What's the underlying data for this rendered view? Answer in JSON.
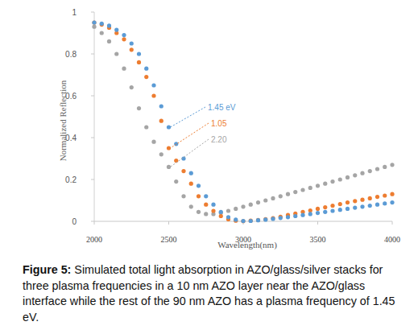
{
  "chart_data": {
    "type": "scatter",
    "x_label": "Wavelength(nm)",
    "y_label": "Normalized Reflection",
    "caption_label": "Figure 5:",
    "caption": "Simulated total light absorption in AZO/glass/silver stacks for three plasma frequencies in a 10 nm AZO layer near the AZO/glass interface while the rest of the 90 nm AZO has a plasma frequency of 1.45 eV.",
    "marker": "circle",
    "grid": false,
    "xlim": [
      2000,
      4000
    ],
    "xticks": [
      2000,
      2500,
      3000,
      3500,
      4000
    ],
    "ylim": [
      0,
      1
    ],
    "yticks": [
      0,
      0.2,
      0.4,
      0.6,
      0.8,
      1
    ],
    "x": [
      2000,
      2050,
      2100,
      2150,
      2200,
      2250,
      2300,
      2350,
      2400,
      2450,
      2500,
      2550,
      2600,
      2650,
      2700,
      2750,
      2800,
      2850,
      2900,
      2950,
      3000,
      3050,
      3100,
      3150,
      3200,
      3250,
      3300,
      3350,
      3400,
      3450,
      3500,
      3550,
      3600,
      3650,
      3700,
      3750,
      3800,
      3850,
      3900,
      3950,
      4000
    ],
    "series": [
      {
        "name": "1.45 eV",
        "color": "#5b9bd5",
        "values": [
          0.95,
          0.945,
          0.935,
          0.915,
          0.89,
          0.85,
          0.8,
          0.73,
          0.65,
          0.55,
          0.45,
          0.37,
          0.3,
          0.23,
          0.17,
          0.12,
          0.08,
          0.045,
          0.02,
          0.008,
          0.002,
          0.002,
          0.005,
          0.008,
          0.012,
          0.016,
          0.02,
          0.025,
          0.03,
          0.035,
          0.04,
          0.045,
          0.05,
          0.055,
          0.06,
          0.065,
          0.07,
          0.075,
          0.08,
          0.085,
          0.09
        ]
      },
      {
        "name": "1.05",
        "color": "#ed7d31",
        "values": [
          0.95,
          0.94,
          0.925,
          0.9,
          0.87,
          0.82,
          0.76,
          0.69,
          0.6,
          0.48,
          0.35,
          0.29,
          0.24,
          0.18,
          0.12,
          0.08,
          0.05,
          0.025,
          0.01,
          0.003,
          0.001,
          0.003,
          0.006,
          0.01,
          0.015,
          0.022,
          0.03,
          0.037,
          0.045,
          0.052,
          0.06,
          0.067,
          0.075,
          0.082,
          0.09,
          0.097,
          0.103,
          0.11,
          0.117,
          0.123,
          0.13
        ]
      },
      {
        "name": "2.20",
        "color": "#a5a5a5",
        "values": [
          0.93,
          0.9,
          0.86,
          0.8,
          0.73,
          0.64,
          0.54,
          0.45,
          0.38,
          0.32,
          0.26,
          0.19,
          0.12,
          0.07,
          0.045,
          0.035,
          0.035,
          0.04,
          0.05,
          0.06,
          0.07,
          0.08,
          0.09,
          0.1,
          0.11,
          0.12,
          0.13,
          0.14,
          0.15,
          0.16,
          0.17,
          0.18,
          0.19,
          0.2,
          0.21,
          0.22,
          0.23,
          0.24,
          0.25,
          0.26,
          0.27
        ]
      }
    ]
  }
}
